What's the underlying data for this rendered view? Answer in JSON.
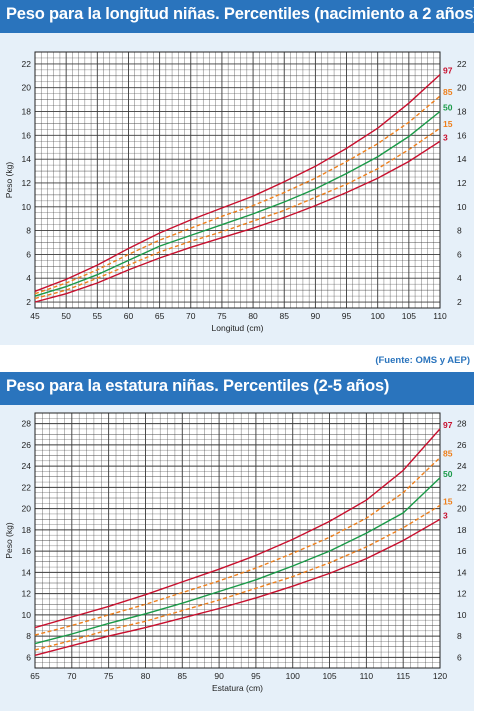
{
  "source_note": "(Fuente: OMS y AEP)",
  "colors": {
    "header": "#2a74bd",
    "panel": "#e6f0f9",
    "p3": "#c8102e",
    "p15": "#ee7f1b",
    "p50": "#1a9a48",
    "p85": "#ee7f1b",
    "p97": "#c8102e",
    "grid": "#3a3a3a"
  },
  "chart_data": [
    {
      "type": "line",
      "title": "Peso para la longitud niñas. Percentiles (nacimiento a 2 años)",
      "xlabel": "Longitud (cm)",
      "ylabel": "Peso (kg)",
      "xlim": [
        45,
        110
      ],
      "ylim": [
        1.5,
        23
      ],
      "x_ticks": [
        "45",
        "50",
        "55",
        "60",
        "65",
        "70",
        "75",
        "80",
        "85",
        "90",
        "95",
        "100",
        "105",
        "110"
      ],
      "y_ticks": [
        "2",
        "4",
        "6",
        "8",
        "10",
        "12",
        "14",
        "16",
        "18",
        "20",
        "22"
      ],
      "grid": true,
      "series": [
        {
          "name": "3",
          "x": [
            45,
            50,
            55,
            60,
            65,
            70,
            75,
            80,
            85,
            90,
            95,
            100,
            105,
            110
          ],
          "values": [
            2.0,
            2.7,
            3.6,
            4.7,
            5.7,
            6.6,
            7.4,
            8.2,
            9.1,
            10.1,
            11.2,
            12.4,
            13.8,
            15.5
          ]
        },
        {
          "name": "15",
          "x": [
            45,
            50,
            55,
            60,
            65,
            70,
            75,
            80,
            85,
            90,
            95,
            100,
            105,
            110
          ],
          "values": [
            2.3,
            3.0,
            4.0,
            5.1,
            6.2,
            7.1,
            7.9,
            8.8,
            9.7,
            10.8,
            11.9,
            13.2,
            14.8,
            16.6
          ]
        },
        {
          "name": "50",
          "x": [
            45,
            50,
            55,
            60,
            65,
            70,
            75,
            80,
            85,
            90,
            95,
            100,
            105,
            110
          ],
          "values": [
            2.5,
            3.3,
            4.3,
            5.5,
            6.7,
            7.6,
            8.5,
            9.4,
            10.4,
            11.5,
            12.8,
            14.2,
            15.9,
            18.0
          ]
        },
        {
          "name": "85",
          "x": [
            45,
            50,
            55,
            60,
            65,
            70,
            75,
            80,
            85,
            90,
            95,
            100,
            105,
            110
          ],
          "values": [
            2.7,
            3.6,
            4.7,
            6.0,
            7.2,
            8.2,
            9.2,
            10.1,
            11.2,
            12.4,
            13.8,
            15.3,
            17.1,
            19.3
          ]
        },
        {
          "name": "97",
          "x": [
            45,
            50,
            55,
            60,
            65,
            70,
            75,
            80,
            85,
            90,
            95,
            100,
            105,
            110
          ],
          "values": [
            2.9,
            3.9,
            5.1,
            6.5,
            7.8,
            8.9,
            9.9,
            10.9,
            12.1,
            13.4,
            14.9,
            16.6,
            18.7,
            21.1
          ]
        }
      ]
    },
    {
      "type": "line",
      "title": "Peso para la estatura niñas. Percentiles (2-5 años)",
      "xlabel": "Estatura (cm)",
      "ylabel": "Peso (kg)",
      "xlim": [
        65,
        120
      ],
      "ylim": [
        5,
        29
      ],
      "x_ticks": [
        "65",
        "70",
        "75",
        "80",
        "85",
        "90",
        "95",
        "100",
        "105",
        "110",
        "115",
        "120"
      ],
      "y_ticks": [
        "6",
        "8",
        "10",
        "12",
        "14",
        "16",
        "18",
        "20",
        "22",
        "24",
        "26",
        "28"
      ],
      "grid": true,
      "series": [
        {
          "name": "3",
          "x": [
            65,
            70,
            75,
            80,
            85,
            90,
            95,
            100,
            105,
            110,
            115,
            120
          ],
          "values": [
            6.2,
            7.1,
            8.0,
            8.8,
            9.7,
            10.6,
            11.6,
            12.7,
            13.9,
            15.3,
            17.0,
            19.0
          ]
        },
        {
          "name": "15",
          "x": [
            65,
            70,
            75,
            80,
            85,
            90,
            95,
            100,
            105,
            110,
            115,
            120
          ],
          "values": [
            6.7,
            7.6,
            8.6,
            9.4,
            10.4,
            11.4,
            12.5,
            13.6,
            14.9,
            16.4,
            18.2,
            20.3
          ]
        },
        {
          "name": "50",
          "x": [
            65,
            70,
            75,
            80,
            85,
            90,
            95,
            100,
            105,
            110,
            115,
            120
          ],
          "values": [
            7.3,
            8.2,
            9.2,
            10.1,
            11.1,
            12.2,
            13.3,
            14.6,
            16.0,
            17.7,
            19.6,
            22.9
          ]
        },
        {
          "name": "85",
          "x": [
            65,
            70,
            75,
            80,
            85,
            90,
            95,
            100,
            105,
            110,
            115,
            120
          ],
          "values": [
            8.1,
            9.0,
            10.0,
            11.0,
            12.1,
            13.2,
            14.4,
            15.8,
            17.3,
            19.1,
            21.5,
            24.8
          ]
        },
        {
          "name": "97",
          "x": [
            65,
            70,
            75,
            80,
            85,
            90,
            95,
            100,
            105,
            110,
            115,
            120
          ],
          "values": [
            8.8,
            9.8,
            10.8,
            11.9,
            13.1,
            14.3,
            15.6,
            17.1,
            18.8,
            20.8,
            23.6,
            27.5
          ]
        }
      ]
    }
  ]
}
